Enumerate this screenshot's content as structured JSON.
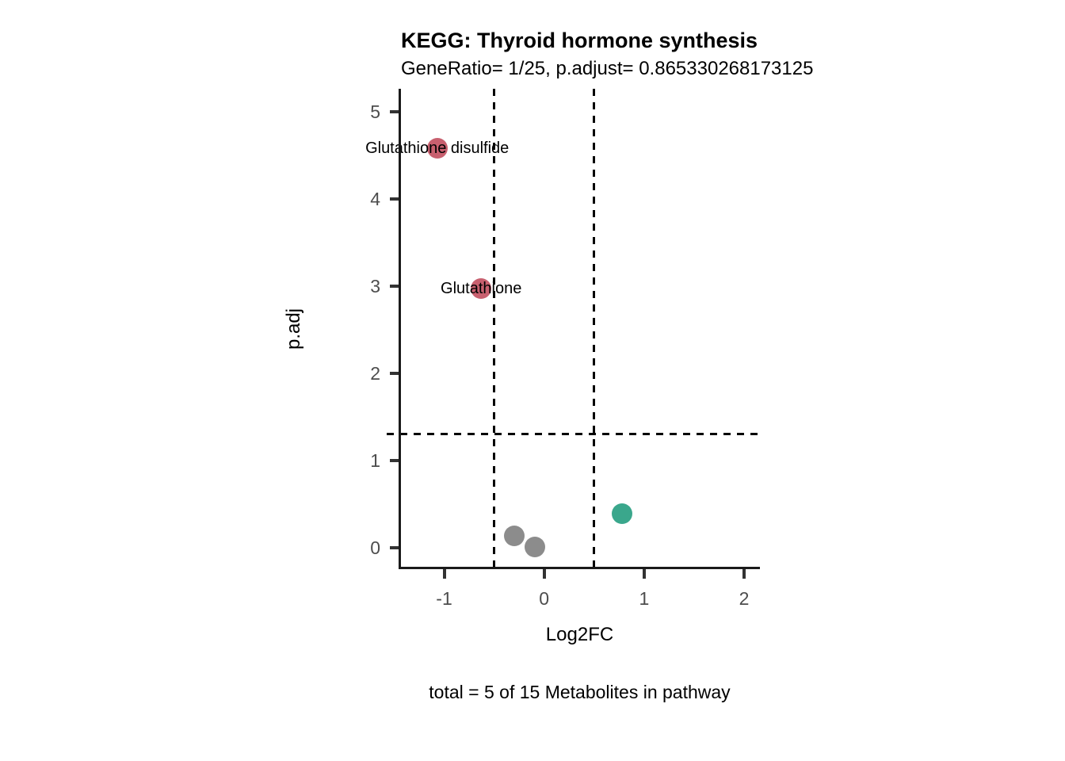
{
  "chart_data": {
    "type": "scatter",
    "title": "KEGG: Thyroid hormone synthesis",
    "subtitle": "GeneRatio= 1/25, p.adjust= 0.865330268173125",
    "caption": "total = 5 of 15 Metabolites in pathway",
    "xlabel": "Log2FC",
    "ylabel": "p.adj",
    "xlim": [
      -1.44,
      2.15
    ],
    "ylim": [
      -0.24,
      5.26
    ],
    "xticks": [
      -1,
      0,
      1,
      2
    ],
    "yticks": [
      0,
      1,
      2,
      3,
      4,
      5
    ],
    "grid": false,
    "legend": false,
    "thresholds": {
      "vlines": [
        -0.5,
        0.5
      ],
      "hline": 1.3,
      "line_style": "dashed",
      "line_color": "#000000"
    },
    "points": [
      {
        "label": "Glutathione disulfide",
        "x": -1.07,
        "y": 4.58,
        "color": "#C8606F"
      },
      {
        "label": "Glutathione",
        "x": -0.63,
        "y": 2.97,
        "color": "#C8606F"
      },
      {
        "label": null,
        "x": -0.3,
        "y": 0.13,
        "color": "#8C8C8C"
      },
      {
        "label": null,
        "x": -0.09,
        "y": 0.01,
        "color": "#8C8C8C"
      },
      {
        "label": null,
        "x": 0.78,
        "y": 0.39,
        "color": "#3AA78C"
      }
    ],
    "colors": {
      "up_nonsig": "#3AA78C",
      "down_sig": "#C8606F",
      "nonsig": "#8C8C8C",
      "axis": "#1a1a1a",
      "tick_label": "#4d4d4d",
      "threshold": "#000000"
    }
  }
}
